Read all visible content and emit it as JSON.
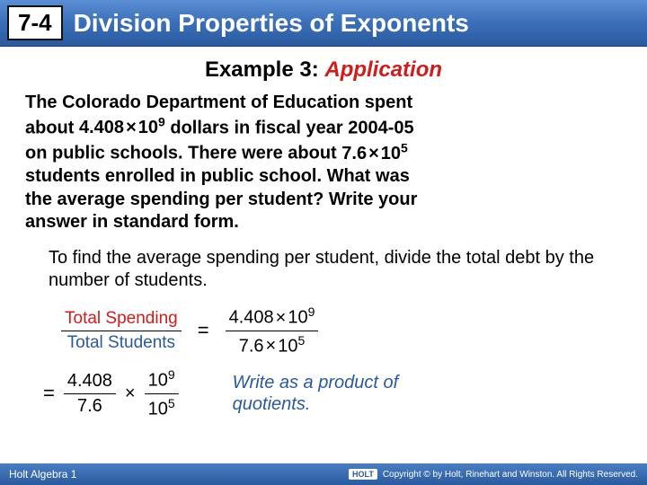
{
  "header": {
    "lesson_number": "7-4",
    "lesson_title": "Division Properties of Exponents"
  },
  "example": {
    "label": "Example 3:",
    "kind": "Application"
  },
  "problem": {
    "line1": "The Colorado Department of Education spent",
    "about1": "about ",
    "sci1_coef": "4.408",
    "sci1_exp": "9",
    "line1_tail": " dollars in fiscal year 2004-05",
    "line2": "on public schools. There were about ",
    "sci2_coef": "7.6",
    "sci2_exp": "5",
    "line3": "students enrolled in public school. What was",
    "line4": "the average spending per student? Write your",
    "line5": "answer in standard form."
  },
  "explanation": "To find the average spending per student, divide the total debt by the number of students.",
  "math": {
    "labelfrac_num": "Total Spending",
    "labelfrac_den": "Total Students",
    "eq": "=",
    "frac1_num_coef": "4.408",
    "frac1_num_exp": "9",
    "frac1_den_coef": "7.6",
    "frac1_den_exp": "5",
    "coef_num": "4.408",
    "coef_den": "7.6",
    "times": "×",
    "pow_num": "10",
    "pow_num_exp": "9",
    "pow_den": "10",
    "pow_den_exp": "5"
  },
  "note": "Write as a product of quotients.",
  "footer": {
    "left": "Holt Algebra 1",
    "brand": "HOLT",
    "copyright": "Copyright © by Holt, Rinehart and Winston. All Rights Reserved."
  },
  "colors": {
    "header_grad_top": "#5b8fd4",
    "header_grad_bot": "#2a5a9e",
    "red": "#d21b1b",
    "blue": "#2a5a9e"
  }
}
